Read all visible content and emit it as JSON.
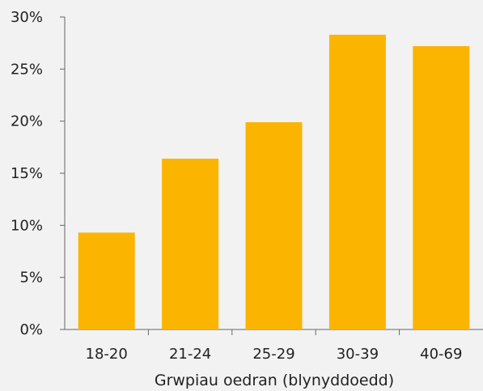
{
  "chart_data": {
    "type": "bar",
    "categories": [
      "18-20",
      "21-24",
      "25-29",
      "30-39",
      "40-69"
    ],
    "values": [
      9.3,
      16.4,
      19.9,
      28.3,
      27.2
    ],
    "xlabel": "Grwpiau oedran (blynyddoedd)",
    "ylabel": "",
    "ylim": [
      0,
      30
    ],
    "y_ticks": [
      0,
      5,
      10,
      15,
      20,
      25,
      30
    ],
    "y_tick_format": "percent",
    "grid": false,
    "legend": "none",
    "colors": {
      "bar": "#fbb400",
      "axis": "#666666",
      "text": "#222222",
      "background": "#f2f2f2"
    }
  }
}
